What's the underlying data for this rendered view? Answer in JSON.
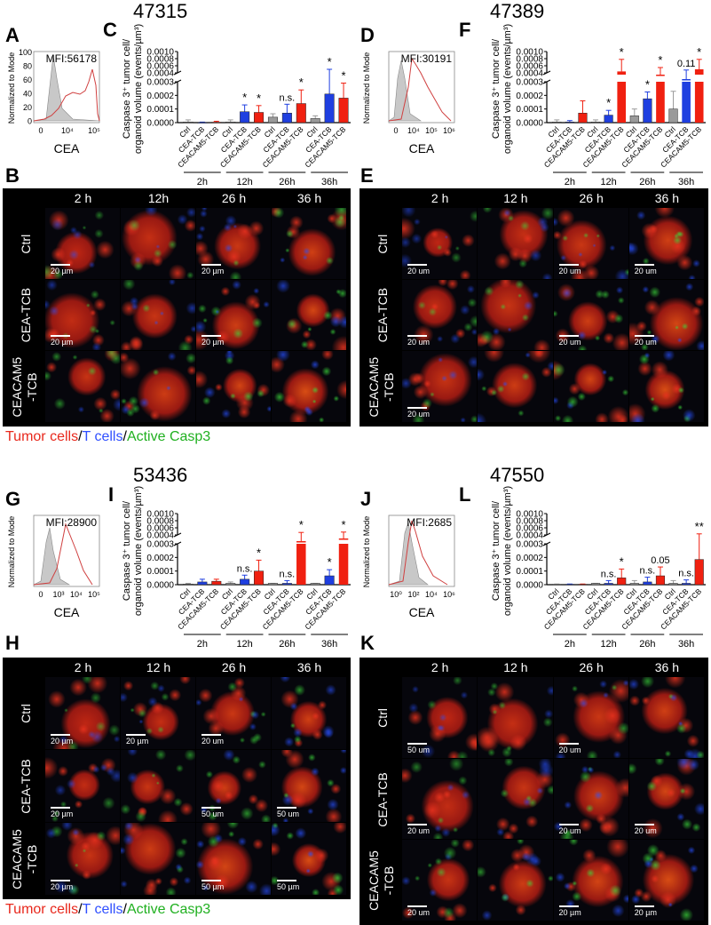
{
  "colors": {
    "ctrl": "#9a9a9a",
    "cea_tcb": "#1f3fe0",
    "ceacam5_tcb": "#f02010",
    "tumor": "#e8281c",
    "tcell": "#3050ff",
    "casp3": "#20c020"
  },
  "titles": [
    "47315",
    "47389",
    "53436",
    "47550"
  ],
  "panel_labels": {
    "A": "A",
    "B": "B",
    "C": "C",
    "D": "D",
    "E": "E",
    "F": "F",
    "G": "G",
    "H": "H",
    "I": "I",
    "J": "J",
    "K": "K",
    "L": "L"
  },
  "histograms": [
    {
      "mfi": "MFI:56178",
      "ylabel": "Normalized to Mode",
      "xlabel": "CEA",
      "yticks": [
        "100",
        "80",
        "60",
        "40",
        "20",
        "0"
      ],
      "xticks": [
        "0",
        "10⁴",
        "10⁵"
      ]
    },
    {
      "mfi": "MFI:30191",
      "ylabel": "Normalized to Mode",
      "xlabel": "CEA",
      "yticks": [],
      "xticks": [
        "0",
        "10⁴",
        "10⁵",
        "10⁶"
      ]
    },
    {
      "mfi": "MFI:28900",
      "ylabel": "Normalized to Mode",
      "xlabel": "CEA",
      "yticks": [],
      "xticks": [
        "0",
        "10³",
        "10⁴",
        "10⁵"
      ]
    },
    {
      "mfi": "MFI:2685",
      "ylabel": "Normalized to Mode",
      "xlabel": "CEA",
      "yticks": [],
      "xticks": [
        "10⁰",
        "10²",
        "10⁴",
        "10⁶"
      ]
    }
  ],
  "micrographs": [
    {
      "cols": [
        "2 h",
        "12h",
        "26 h",
        "36 h"
      ],
      "rows": [
        "Ctrl",
        "CEA-TCB",
        "CEACAM5\n-TCB"
      ],
      "scales": [
        "20 µm",
        "",
        "20 µm",
        "",
        "20 µm",
        "",
        "20 µm",
        "",
        "",
        "",
        "",
        ""
      ]
    },
    {
      "cols": [
        "2 h",
        "12 h",
        "26 h",
        "36 h"
      ],
      "rows": [
        "Ctrl",
        "CEA-TCB",
        "CEACAM5\n-TCB"
      ],
      "scales": [
        "20 um",
        "",
        "20 um",
        "20 um",
        "20 um",
        "",
        "20 um",
        "20 um",
        "20 um",
        "",
        "",
        ""
      ]
    },
    {
      "cols": [
        "2 h",
        "12 h",
        "26 h",
        "36 h"
      ],
      "rows": [
        "Ctrl",
        "CEA-TCB",
        "CEACAM5\n-TCB"
      ],
      "scales": [
        "20 µm",
        "20 µm",
        "20 um",
        "",
        "20 µm",
        "",
        "50 um",
        "50 um",
        "20 µm",
        "",
        "50 µm",
        "50 µm"
      ]
    },
    {
      "cols": [
        "2 h",
        "12 h",
        "26 h",
        "36 h"
      ],
      "rows": [
        "Ctrl",
        "CEA-TCB",
        "CEACAM5\n-TCB"
      ],
      "scales": [
        "50 um",
        "",
        "20 um",
        "",
        "20 um",
        "",
        "20 um",
        "20 um",
        "20 um",
        "",
        "20 µm",
        "20 µm"
      ]
    }
  ],
  "legend": {
    "tumor": "Tumor cells",
    "sep1": "/",
    "tcell": "T cells",
    "sep2": "/",
    "casp3": "Active Casp3"
  },
  "chart_data": [
    {
      "panel": "C",
      "type": "bar",
      "title": "47315",
      "ylabel": "Caspase 3⁺ tumor cell/ organoid volume (events/µm³)",
      "yticks_lower": [
        "0.0000",
        "0.0001",
        "0.0002",
        "0.0003"
      ],
      "yticks_upper": [
        "0.0004",
        "0.0006",
        "0.0008",
        "0.0010"
      ],
      "ylim": [
        0,
        0.001
      ],
      "axis_break": [
        0.0003,
        0.0004
      ],
      "categories": [
        "Ctrl",
        "CEA-TCB",
        "CEACAM5-TCB",
        "Ctrl",
        "CEA-TCB",
        "CEACAM5-TCB",
        "Ctrl",
        "CEA-TCB",
        "CEACAM5-TCB",
        "Ctrl",
        "CEA-TCB",
        "CEACAM5-TCB"
      ],
      "groups": [
        "2h",
        "12h",
        "26h",
        "36h"
      ],
      "values": [
        5e-06,
        2e-06,
        3e-06,
        5e-06,
        8e-05,
        7.5e-05,
        4e-05,
        7e-05,
        0.00014,
        3e-05,
        0.00021,
        0.00018
      ],
      "errors": [
        2e-05,
        4e-06,
        1e-05,
        2e-05,
        0.00013,
        0.000125,
        6.5e-05,
        0.000135,
        0.00024,
        5e-05,
        0.0005,
        0.00029
      ],
      "annotations": [
        "",
        "",
        "",
        "",
        "*",
        "*",
        "",
        "n.s.",
        "*",
        "",
        "*",
        "*"
      ]
    },
    {
      "panel": "F",
      "type": "bar",
      "title": "47389",
      "ylabel": "Caspase 3⁺ tumor cell/ organoid volume (events/µm³)",
      "yticks_lower": [
        "0.0000",
        "0.0001",
        "0.0002",
        "0.0003"
      ],
      "yticks_upper": [
        "0.0004",
        "0.0006",
        "0.0008",
        "0.0010"
      ],
      "ylim": [
        0,
        0.001
      ],
      "axis_break": [
        0.0003,
        0.0004
      ],
      "categories": [
        "Ctrl",
        "CEA-TCB",
        "CEACAM5-TCB",
        "Ctrl",
        "CEA-TCB",
        "CEACAM5-TCB",
        "Ctrl",
        "CEA-TCB",
        "CEACAM5-TCB",
        "Ctrl",
        "CEA-TCB",
        "CEACAM5-TCB"
      ],
      "groups": [
        "2h",
        "12h",
        "26h",
        "36h"
      ],
      "values": [
        5e-06,
        5e-06,
        7e-05,
        5e-06,
        5.5e-05,
        0.00044,
        5e-05,
        0.000175,
        0.00038,
        0.0001,
        0.00033,
        0.0005
      ],
      "errors": [
        2e-05,
        1.5e-05,
        0.00016,
        2e-05,
        9e-05,
        0.00078,
        0.0001,
        0.000225,
        0.00055,
        0.00023,
        0.00048,
        0.00078
      ],
      "annotations": [
        "",
        "",
        "",
        "",
        "*",
        "*",
        "",
        "*",
        "*",
        "",
        "0.11",
        "*"
      ]
    },
    {
      "panel": "I",
      "type": "bar",
      "title": "53436",
      "ylabel": "Caspase 3⁺ tumor cell/ organoid volume (events/µm³)",
      "yticks_lower": [
        "0.0000",
        "0.0001",
        "0.0002",
        "0.0003"
      ],
      "yticks_upper": [
        "0.0004",
        "0.0006",
        "0.0008",
        "0.0010"
      ],
      "ylim": [
        0,
        0.001
      ],
      "axis_break": [
        0.0003,
        0.0004
      ],
      "categories": [
        "Ctrl",
        "CEA-TCB",
        "CEACAM5-TCB",
        "Ctrl",
        "CEA-TCB",
        "CEACAM5-TCB",
        "Ctrl",
        "CEA-TCB",
        "CEACAM5-TCB",
        "Ctrl",
        "CEA-TCB",
        "CEACAM5-TCB"
      ],
      "groups": [
        "2h",
        "12h",
        "26h",
        "36h"
      ],
      "values": [
        5e-06,
        2e-05,
        2.5e-05,
        1e-05,
        4e-05,
        0.0001,
        1e-05,
        1e-05,
        0.00033,
        1e-05,
        6.5e-05,
        0.00036
      ],
      "errors": [
        1e-05,
        4e-05,
        4e-05,
        2e-05,
        7e-05,
        0.00018,
        1e-05,
        3e-05,
        0.00047,
        1e-05,
        0.00011,
        0.00048
      ],
      "annotations": [
        "",
        "",
        "",
        "",
        "n.s.",
        "*",
        "",
        "n.s.",
        "*",
        "",
        "*",
        "*"
      ]
    },
    {
      "panel": "L",
      "type": "bar",
      "title": "47550",
      "ylabel": "Caspase 3⁺ tumor cell/ organoid volume (events/µm³)",
      "yticks_lower": [
        "0.0000",
        "0.0001",
        "0.0002",
        "0.0003"
      ],
      "yticks_upper": [
        "0.0004",
        "0.0006",
        "0.0008",
        "0.0010"
      ],
      "ylim": [
        0,
        0.001
      ],
      "axis_break": [
        0.0003,
        0.0004
      ],
      "categories": [
        "Ctrl",
        "CEA-TCB",
        "CEACAM5-TCB",
        "Ctrl",
        "CEA-TCB",
        "CEACAM5-TCB",
        "Ctrl",
        "CEA-TCB",
        "CEACAM5-TCB",
        "Ctrl",
        "CEA-TCB",
        "CEACAM5-TCB"
      ],
      "groups": [
        "2h",
        "12h",
        "26h",
        "36h"
      ],
      "values": [
        3e-06,
        3e-06,
        3e-06,
        1e-05,
        1e-05,
        5e-05,
        1e-05,
        2e-05,
        6.5e-05,
        1e-05,
        1e-05,
        0.000185
      ],
      "errors": [
        5e-06,
        5e-06,
        5e-06,
        1e-05,
        3e-05,
        0.000115,
        3e-05,
        5.5e-05,
        0.00013,
        3e-05,
        3.5e-05,
        0.00043
      ],
      "annotations": [
        "",
        "",
        "",
        "",
        "n.s.",
        "*",
        "",
        "n.s.",
        "0.05",
        "",
        "n.s.",
        "**"
      ]
    }
  ]
}
